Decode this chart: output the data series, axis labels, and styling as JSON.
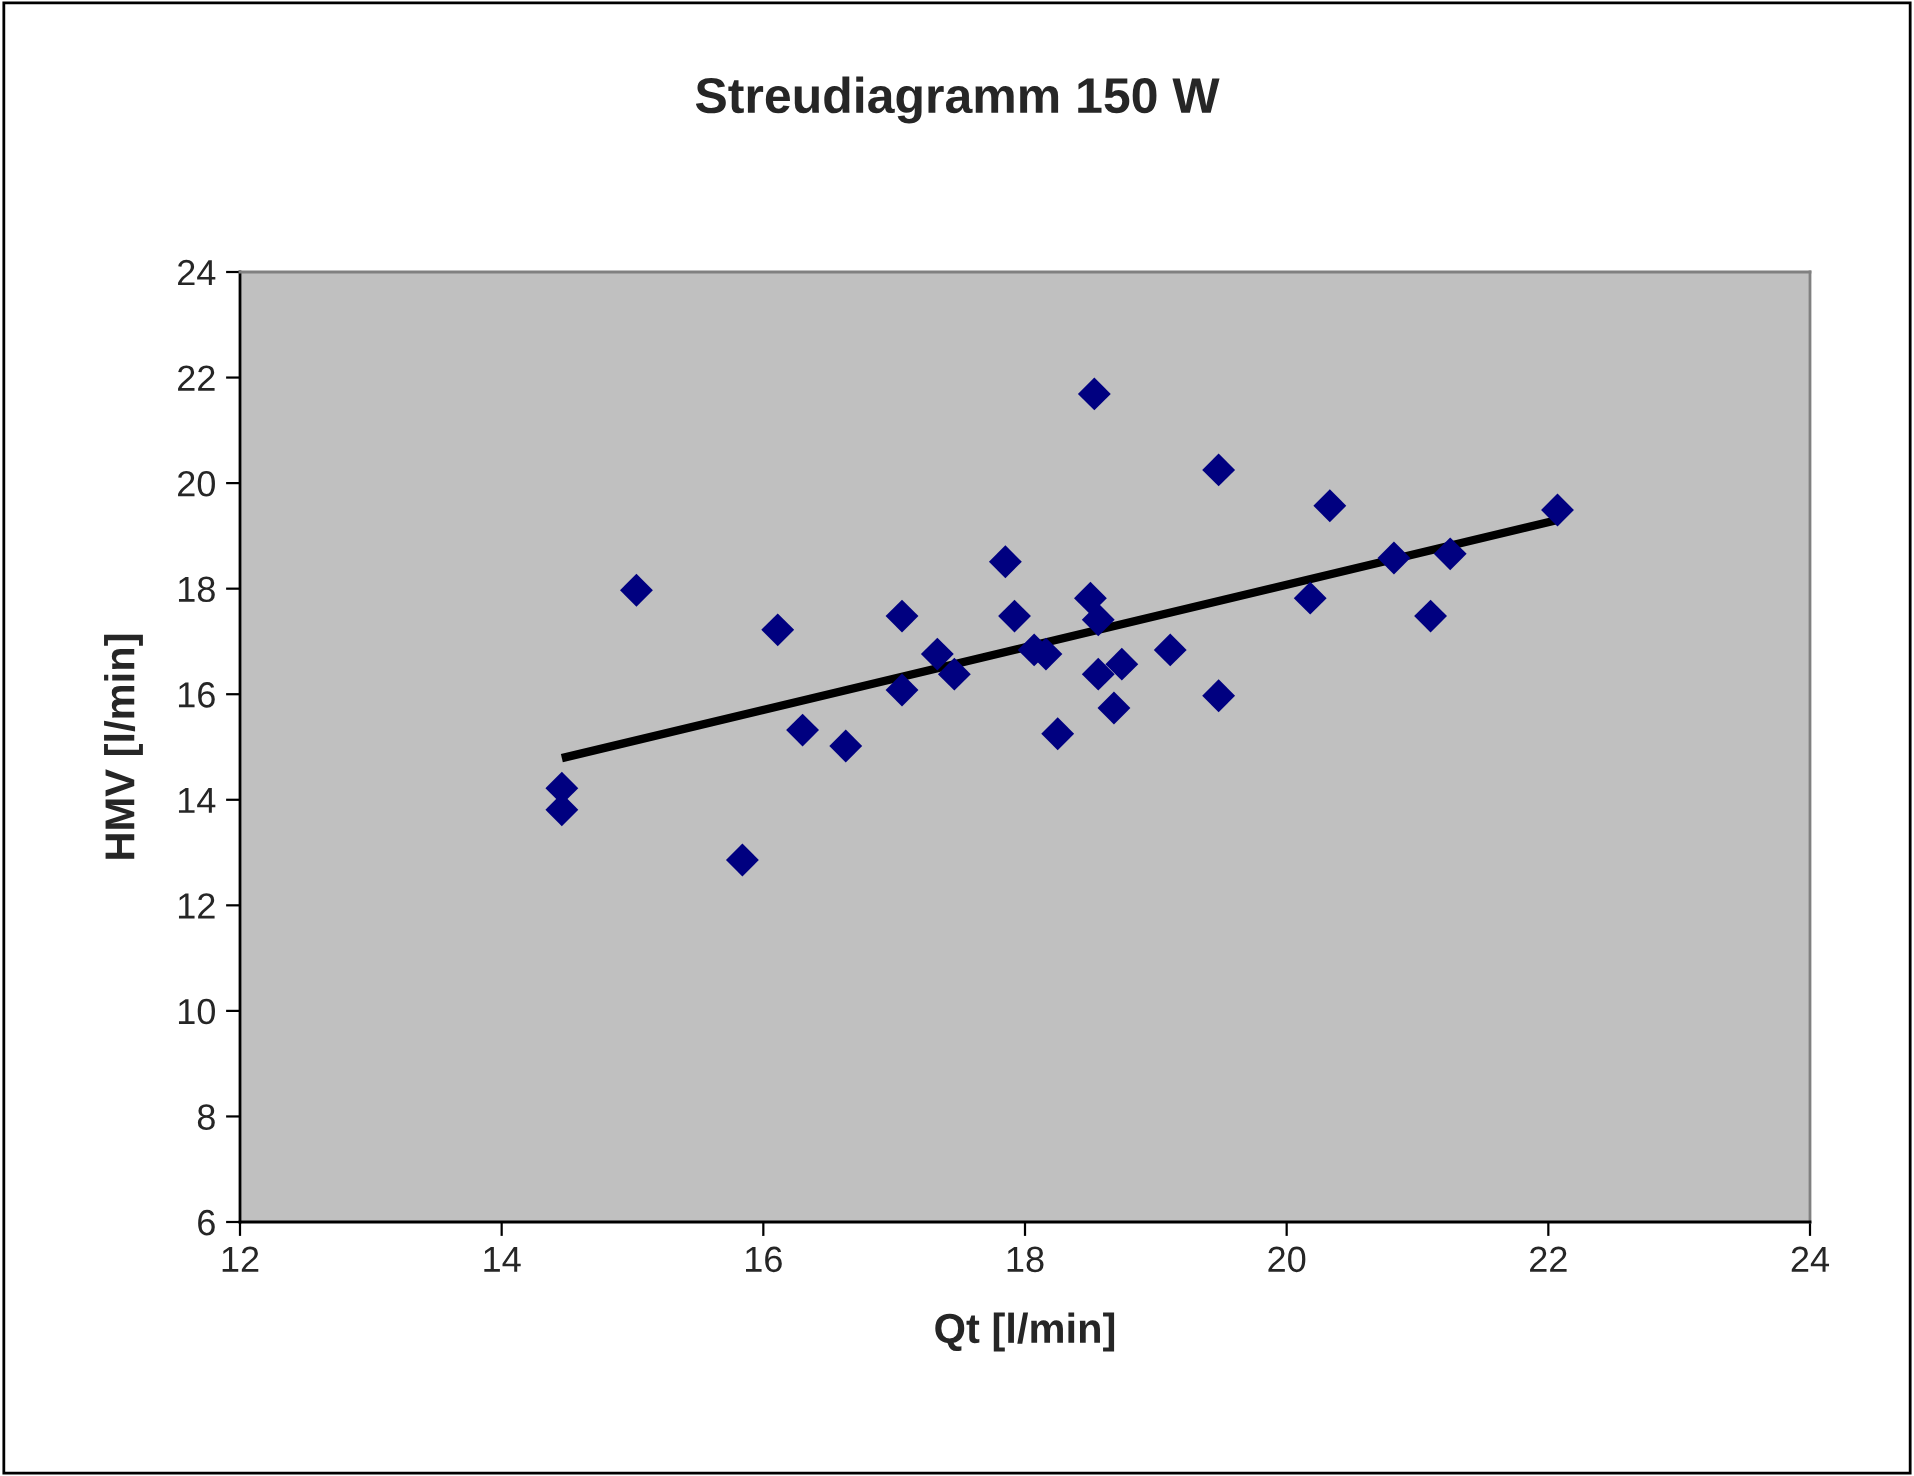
{
  "chart_data": {
    "type": "scatter",
    "title": "Streudiagramm 150 W",
    "xlabel": "Qt [l/min]",
    "ylabel": "HMV [l/min]",
    "xlim": [
      12,
      24
    ],
    "xticks": [
      12,
      14,
      16,
      18,
      20,
      22,
      24
    ],
    "ylim": [
      6,
      24
    ],
    "yticks": [
      6,
      8,
      10,
      12,
      14,
      16,
      18,
      20,
      22,
      24
    ],
    "grid": false,
    "legend": false,
    "series": [
      {
        "marker": "diamond",
        "color": "#000080",
        "x": [
          14.46,
          14.46,
          15.03,
          15.84,
          16.11,
          16.3,
          16.63,
          17.06,
          17.06,
          17.33,
          17.46,
          17.85,
          17.92,
          18.07,
          18.16,
          18.25,
          18.53,
          18.5,
          18.56,
          18.56,
          18.74,
          18.68,
          19.11,
          19.48,
          19.48,
          20.33,
          20.18,
          20.82,
          21.25,
          21.1,
          22.07
        ],
        "values": [
          14.22,
          13.81,
          17.97,
          12.86,
          17.22,
          15.32,
          15.02,
          17.48,
          16.08,
          16.76,
          16.38,
          18.51,
          17.48,
          16.84,
          16.76,
          15.25,
          21.69,
          17.82,
          17.41,
          16.38,
          16.57,
          15.74,
          16.84,
          20.25,
          15.97,
          19.57,
          17.82,
          18.58,
          18.66,
          17.48,
          19.49
        ]
      },
      {
        "type": "line",
        "marker": "none",
        "color": "#000000",
        "x": [
          14.46,
          22.07
        ],
        "values": [
          14.79,
          19.3
        ]
      }
    ]
  }
}
